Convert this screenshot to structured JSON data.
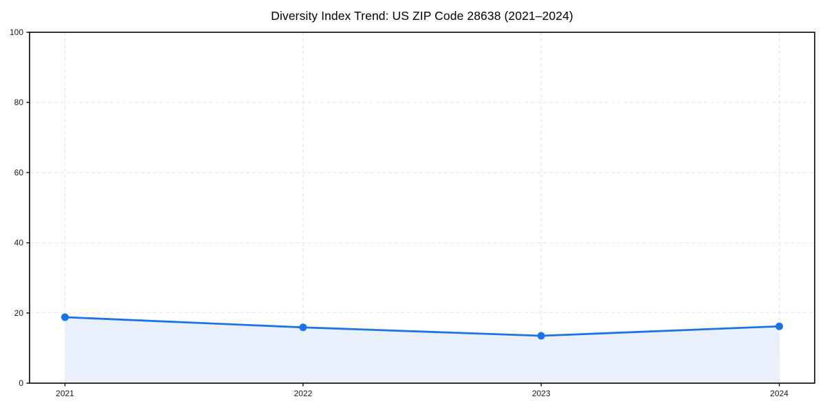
{
  "chart_data": {
    "type": "area",
    "title": "Diversity Index Trend: US ZIP Code 28638 (2021–2024)",
    "categories": [
      "2021",
      "2022",
      "2023",
      "2024"
    ],
    "series": [
      {
        "name": "Diversity Index",
        "values": [
          18.8,
          15.9,
          13.5,
          16.2
        ]
      }
    ],
    "xlabel": "",
    "ylabel": "",
    "ylim": [
      0,
      100
    ],
    "yticks": [
      0,
      20,
      40,
      60,
      80,
      100
    ],
    "grid": true,
    "grid_style": "dashed",
    "legend_position": "none",
    "colors": {
      "line": "#1a73e8",
      "marker": "#1a73e8",
      "area_fill": "#e9f0fc",
      "grid": "#e2e2e2",
      "axis": "#000000",
      "text": "#1a1a1a",
      "background": "#ffffff"
    }
  }
}
